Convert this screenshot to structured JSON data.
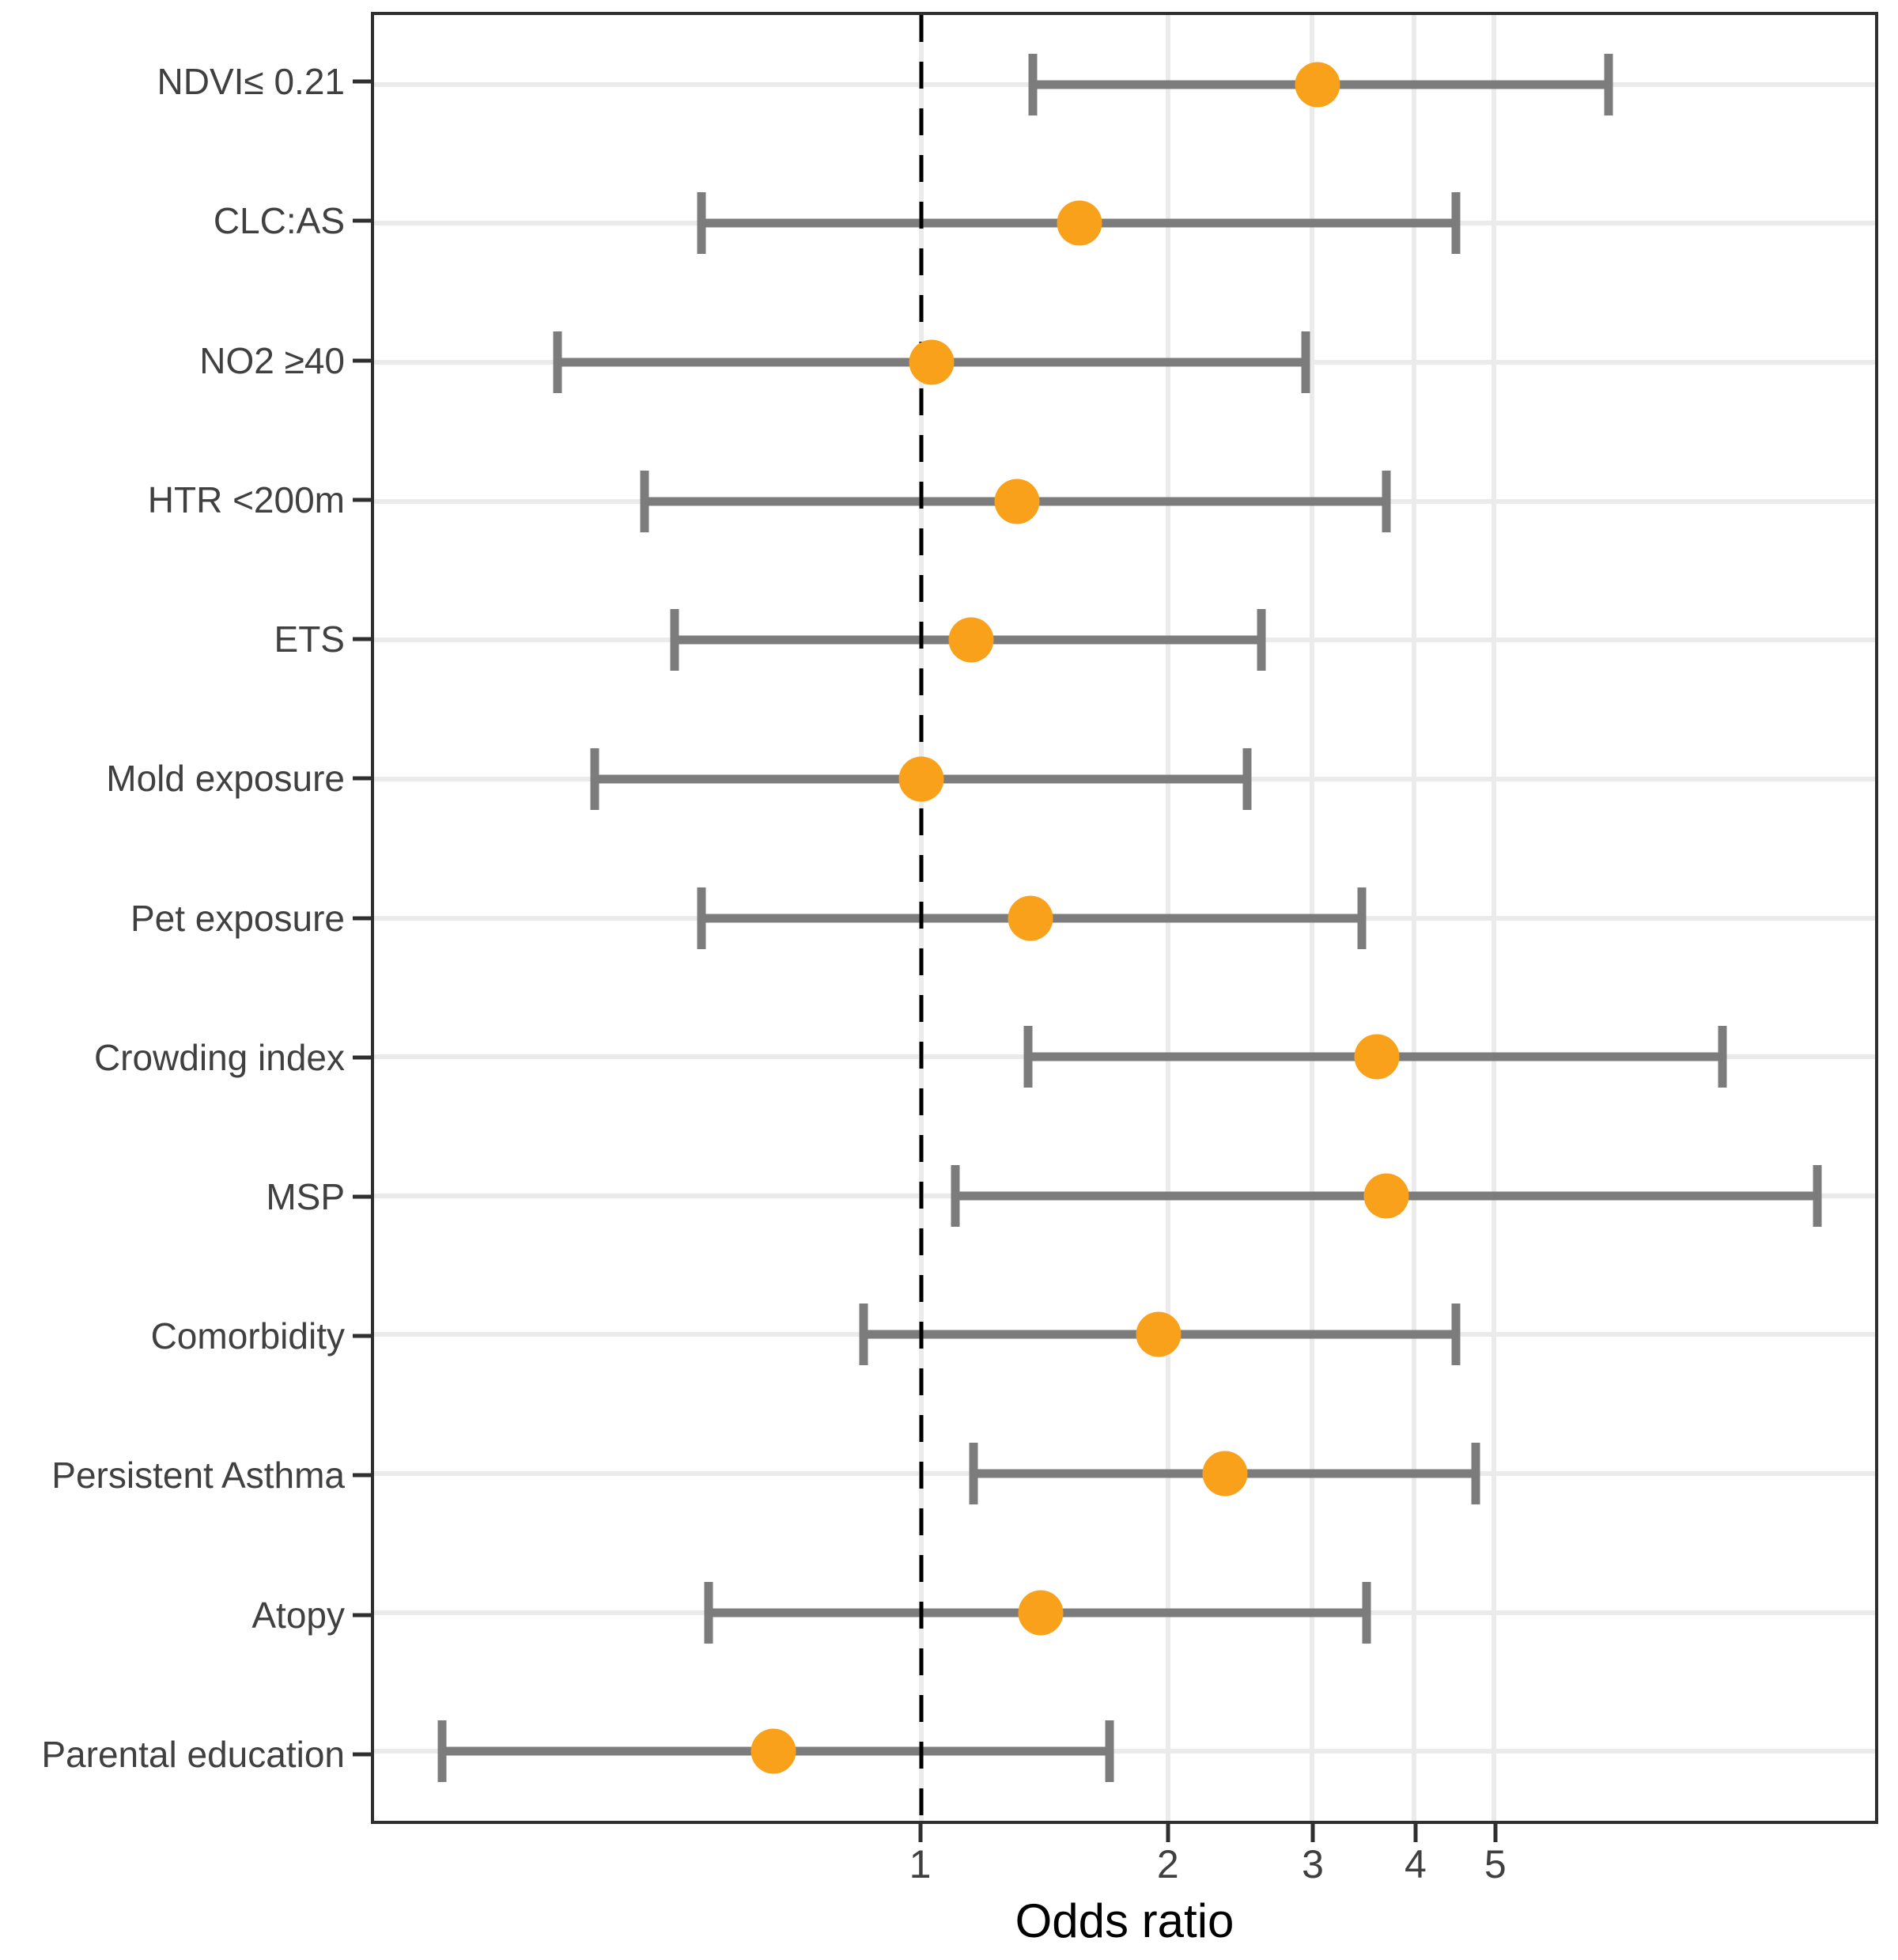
{
  "chart_data": {
    "type": "scatter",
    "subtype": "forest-plot-odds-ratios-with-95ci-error-bars",
    "title": "",
    "xlabel": "Odds ratio",
    "ylabel": "",
    "x_scale": "log10",
    "x_domain": [
      0.215,
      14.6
    ],
    "x_ticks": [
      1,
      2,
      3,
      4,
      5
    ],
    "reference_line_x": 1,
    "grid": true,
    "legend": "none",
    "categories": [
      "NDVI≤ 0.21",
      "CLC:AS",
      "NO2 ≥40",
      "HTR <200m",
      "ETS",
      "Mold exposure",
      "Pet exposure",
      "Crowding index",
      "MSP",
      "Comorbidity",
      "Persistent Asthma",
      "Atopy",
      "Parental education"
    ],
    "points": [
      {
        "label": "NDVI≤ 0.21",
        "or": 3.05,
        "ci_low": 1.37,
        "ci_high": 6.9
      },
      {
        "label": "CLC:AS",
        "or": 1.56,
        "ci_low": 0.54,
        "ci_high": 4.5
      },
      {
        "label": "NO2 ≥40",
        "or": 1.03,
        "ci_low": 0.36,
        "ci_high": 2.95
      },
      {
        "label": "HTR <200m",
        "or": 1.31,
        "ci_low": 0.46,
        "ci_high": 3.7
      },
      {
        "label": "ETS",
        "or": 1.15,
        "ci_low": 0.5,
        "ci_high": 2.6
      },
      {
        "label": "Mold exposure",
        "or": 1.0,
        "ci_low": 0.4,
        "ci_high": 2.5
      },
      {
        "label": "Pet exposure",
        "or": 1.36,
        "ci_low": 0.54,
        "ci_high": 3.45
      },
      {
        "label": "Crowding index",
        "or": 3.6,
        "ci_low": 1.35,
        "ci_high": 9.5
      },
      {
        "label": "MSP",
        "or": 3.7,
        "ci_low": 1.1,
        "ci_high": 12.4
      },
      {
        "label": "Comorbidity",
        "or": 1.95,
        "ci_low": 0.85,
        "ci_high": 4.5
      },
      {
        "label": "Persistent Asthma",
        "or": 2.35,
        "ci_low": 1.16,
        "ci_high": 4.75
      },
      {
        "label": "Atopy",
        "or": 1.4,
        "ci_low": 0.55,
        "ci_high": 3.5
      },
      {
        "label": "Parental education",
        "or": 0.66,
        "ci_low": 0.26,
        "ci_high": 1.7
      }
    ],
    "colors": {
      "point": "#F9A11B",
      "error_bar": "#7C7C7C",
      "gridline": "#EBEBEB",
      "reference_line": "#000000",
      "panel_border": "#2F2F2F",
      "axis_text": "#404040",
      "axis_title": "#000000",
      "background": "#FFFFFF"
    }
  }
}
